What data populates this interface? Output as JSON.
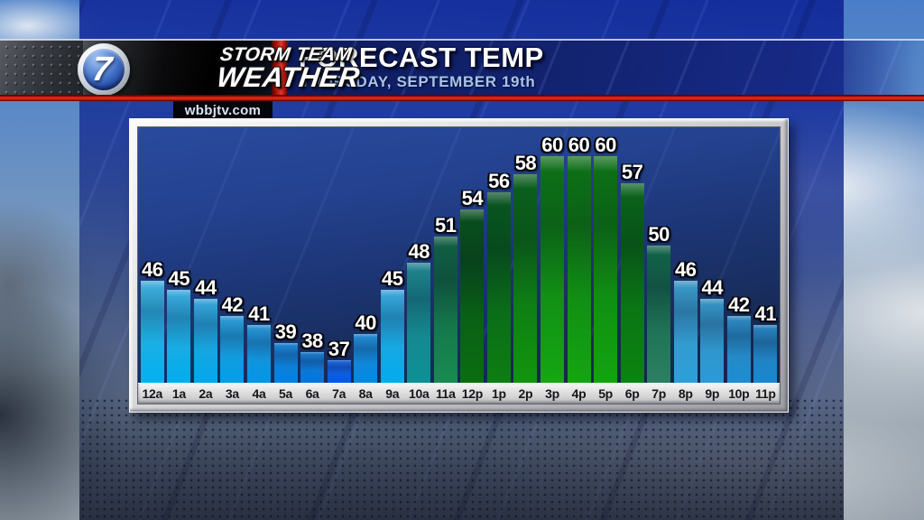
{
  "station": {
    "number": "7",
    "name_line1": "STORM TEAM",
    "name_line2": "WEATHER",
    "website": "wbbjtv.com"
  },
  "header": {
    "title": "FORECAST TEMP",
    "subtitle": "THURSDAY, SEPTEMBER 19th"
  },
  "colors": {
    "accent_red": "#e02418",
    "banner_navy": "#16255e",
    "subtitle_blue": "#a6c4e8",
    "frame_silver": "#c8c9cd",
    "plot_navy": "#1c3574",
    "axis_strip": "#dedede"
  },
  "chart_data": {
    "type": "bar",
    "title": "FORECAST TEMP",
    "subtitle": "THURSDAY, SEPTEMBER 19th",
    "categories": [
      "12a",
      "1a",
      "2a",
      "3a",
      "4a",
      "5a",
      "6a",
      "7a",
      "8a",
      "9a",
      "10a",
      "11a",
      "12p",
      "1p",
      "2p",
      "3p",
      "4p",
      "5p",
      "6p",
      "7p",
      "8p",
      "9p",
      "10p",
      "11p"
    ],
    "values": [
      46,
      45,
      44,
      42,
      41,
      39,
      38,
      37,
      40,
      45,
      48,
      51,
      54,
      56,
      58,
      60,
      60,
      60,
      57,
      50,
      46,
      44,
      42,
      41
    ],
    "unit": "",
    "xlabel": "",
    "ylabel": "",
    "ylim": [
      34.5,
      63.6
    ],
    "grid": false,
    "legend": false,
    "bar_colors": [
      [
        "#41abd9",
        "#00b2ee"
      ],
      [
        "#3da7d7",
        "#00aeec"
      ],
      [
        "#38a2d5",
        "#00a8ea"
      ],
      [
        "#2e99d3",
        "#009ee8"
      ],
      [
        "#2a92d1",
        "#0096e6"
      ],
      [
        "#2181cd",
        "#0080e2"
      ],
      [
        "#1e79ca",
        "#0076e0"
      ],
      [
        "#2166da",
        "#0058ea"
      ],
      [
        "#2587ce",
        "#008ae4"
      ],
      [
        "#3aa3d5",
        "#00acec"
      ],
      [
        "#1f808a",
        "#0d9094"
      ],
      [
        "#0f5a40",
        "#188b51"
      ],
      [
        "#084a1e",
        "#0a6e10"
      ],
      [
        "#085022",
        "#0c7e12"
      ],
      [
        "#095a1e",
        "#12950e"
      ],
      [
        "#0c6a16",
        "#15a713"
      ],
      [
        "#0c6a16",
        "#14a511"
      ],
      [
        "#0c6a16",
        "#12a50f"
      ],
      [
        "#0a5e1a",
        "#0b8410"
      ],
      [
        "#0f5f46",
        "#2a8060"
      ],
      [
        "#3a95c2",
        "#2d9fd8"
      ],
      [
        "#3790bf",
        "#2b9ad6"
      ],
      [
        "#2d85bb",
        "#1e8dd0"
      ],
      [
        "#297fb8",
        "#1a87ce"
      ]
    ]
  }
}
